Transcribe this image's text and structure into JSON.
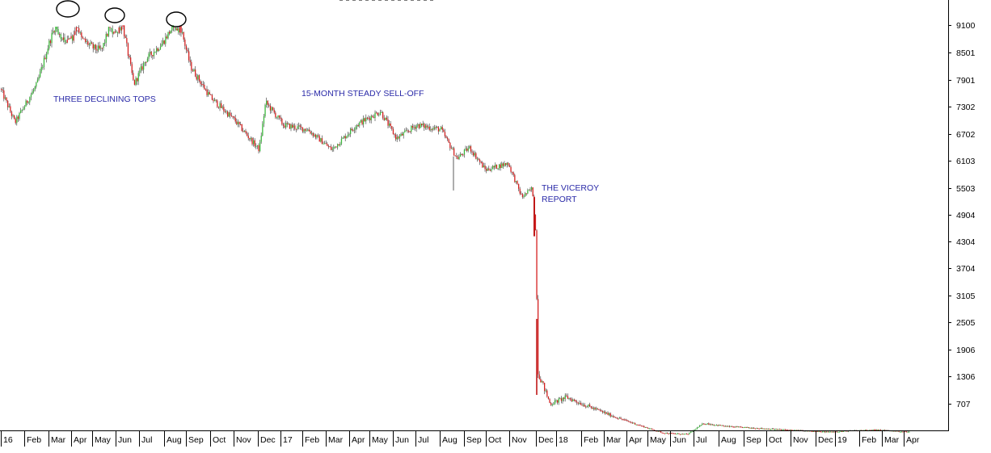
{
  "chart_data": {
    "type": "candlestick",
    "title": "",
    "xlabel": "",
    "ylabel": "",
    "ylim": [
      0,
      9700
    ],
    "y_ticks": [
      "9100",
      "8501",
      "7901",
      "7302",
      "6702",
      "6103",
      "5503",
      "4904",
      "4304",
      "3704",
      "3105",
      "2505",
      "1906",
      "1306",
      "707"
    ],
    "x_ticks": [
      "16",
      "Feb",
      "Mar",
      "Apr",
      "May",
      "Jun",
      "Jul",
      "Aug",
      "Sep",
      "Oct",
      "Nov",
      "Dec",
      "17",
      "Feb",
      "Mar",
      "Apr",
      "May",
      "Jun",
      "Jul",
      "Aug",
      "Sep",
      "Oct",
      "Nov",
      "Dec",
      "18",
      "Feb",
      "Mar",
      "Apr",
      "May",
      "Jun",
      "Jul",
      "Aug",
      "Sep",
      "Oct",
      "Nov",
      "Dec",
      "19",
      "Feb",
      "Mar",
      "Apr"
    ],
    "annotations": {
      "tops": "THREE DECLINING TOPS",
      "selloff": "15-MONTH STEADY SELL-OFF",
      "viceroy_line1": "THE VICEROY",
      "viceroy_line2": "REPORT"
    },
    "price_path_anchors": [
      [
        0,
        7700
      ],
      [
        18,
        6950
      ],
      [
        45,
        7800
      ],
      [
        60,
        8700
      ],
      [
        75,
        9450
      ],
      [
        90,
        9400
      ],
      [
        100,
        8800
      ],
      [
        115,
        8600
      ],
      [
        125,
        8550
      ],
      [
        140,
        9300
      ],
      [
        150,
        9200
      ],
      [
        165,
        7800
      ],
      [
        180,
        8350
      ],
      [
        200,
        8700
      ],
      [
        220,
        9250
      ],
      [
        235,
        8200
      ],
      [
        260,
        7500
      ],
      [
        290,
        7000
      ],
      [
        320,
        6350
      ],
      [
        328,
        7400
      ],
      [
        350,
        6900
      ],
      [
        380,
        6800
      ],
      [
        410,
        6350
      ],
      [
        440,
        6900
      ],
      [
        470,
        7200
      ],
      [
        490,
        6600
      ],
      [
        515,
        6900
      ],
      [
        545,
        6800
      ],
      [
        565,
        6150
      ],
      [
        580,
        6400
      ],
      [
        600,
        5900
      ],
      [
        628,
        6050
      ],
      [
        645,
        5300
      ],
      [
        658,
        5500
      ],
      [
        662,
        4500
      ],
      [
        665,
        1400
      ],
      [
        680,
        700
      ],
      [
        700,
        850
      ],
      [
        720,
        700
      ],
      [
        760,
        420
      ],
      [
        800,
        180
      ],
      [
        820,
        70
      ],
      [
        850,
        40
      ],
      [
        870,
        280
      ],
      [
        900,
        210
      ],
      [
        960,
        150
      ],
      [
        1020,
        90
      ],
      [
        1080,
        140
      ],
      [
        1125,
        90
      ]
    ],
    "candle_colors": {
      "up": "#3cb83c",
      "down": "#d42020"
    },
    "grid": false
  }
}
